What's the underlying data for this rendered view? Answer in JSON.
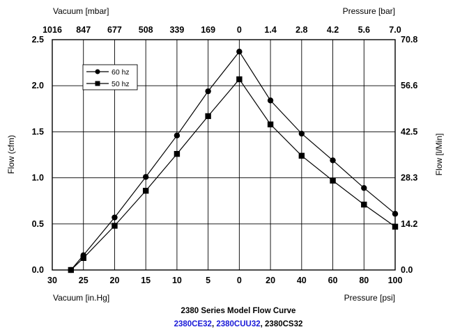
{
  "chart_data": {
    "type": "line",
    "title": "2380 Series Model Flow Curve",
    "subtitle_parts": [
      {
        "text": "2380CE32",
        "color": "#1a1ad8"
      },
      {
        "text": ", ",
        "color": "#000000"
      },
      {
        "text": "2380CUU32",
        "color": "#1a1ad8"
      },
      {
        "text": ", 2380CS32",
        "color": "#000000"
      }
    ],
    "x_categories": [
      "30",
      "25",
      "20",
      "15",
      "10",
      "5",
      "0",
      "20",
      "40",
      "60",
      "80",
      "100"
    ],
    "x_top_categories": [
      "1016",
      "847",
      "677",
      "508",
      "339",
      "169",
      "0",
      "1.4",
      "2.8",
      "4.2",
      "5.6",
      "7.0"
    ],
    "xlabel_bottom_left": "Vacuum [in.Hg]",
    "xlabel_bottom_right": "Pressure [psi]",
    "xlabel_top_left": "Vacuum [mbar]",
    "xlabel_top_right": "Pressure [bar]",
    "ylabel_left": "Flow (cfm)",
    "ylabel_right": "Flow [l/Min]",
    "ylim": [
      0,
      2.5
    ],
    "y_ticks": [
      "0.0",
      "0.5",
      "1.0",
      "1.5",
      "2.0",
      "2.5"
    ],
    "y2_ticks": [
      {
        "value": 0,
        "label": "0.0"
      },
      {
        "value": 0.5,
        "label": "14.2"
      },
      {
        "value": 1.0,
        "label": "28.3"
      },
      {
        "value": 1.5,
        "label": "42.5"
      },
      {
        "value": 2.0,
        "label": "56.6"
      },
      {
        "value": 2.5,
        "label": "70.8"
      }
    ],
    "grid": true,
    "legend_position": "top-left",
    "series": [
      {
        "name": "60 hz",
        "marker": "circle",
        "points": [
          [
            27,
            0.0
          ],
          [
            25,
            0.16
          ],
          [
            20,
            0.57
          ],
          [
            15,
            1.01
          ],
          [
            10,
            1.46
          ],
          [
            5,
            1.94
          ],
          [
            0,
            2.37
          ],
          [
            20,
            1.84
          ],
          [
            40,
            1.48
          ],
          [
            60,
            1.19
          ],
          [
            80,
            0.89
          ],
          [
            100,
            0.61
          ]
        ],
        "x_index": [
          0.6,
          1,
          2,
          3,
          4,
          5,
          6,
          7,
          8,
          9,
          10,
          11
        ]
      },
      {
        "name": "50 hz",
        "marker": "square",
        "points": [
          [
            27,
            0.0
          ],
          [
            25,
            0.13
          ],
          [
            20,
            0.48
          ],
          [
            15,
            0.86
          ],
          [
            10,
            1.26
          ],
          [
            5,
            1.67
          ],
          [
            0,
            2.07
          ],
          [
            20,
            1.58
          ],
          [
            40,
            1.24
          ],
          [
            60,
            0.97
          ],
          [
            80,
            0.71
          ],
          [
            100,
            0.47
          ]
        ],
        "x_index": [
          0.6,
          1,
          2,
          3,
          4,
          5,
          6,
          7,
          8,
          9,
          10,
          11
        ]
      }
    ]
  }
}
